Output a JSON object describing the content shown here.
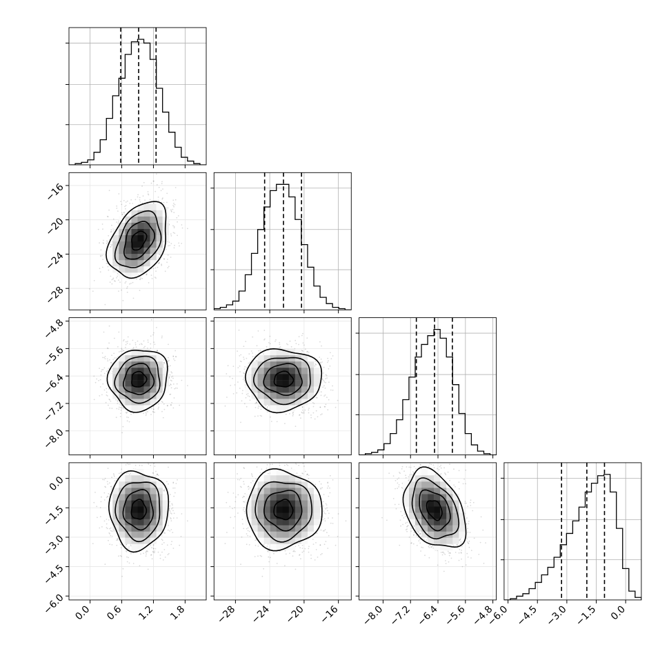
{
  "chart_data": {
    "type": "corner",
    "grid": true,
    "parameters": [
      {
        "range": [
          -0.4,
          2.2
        ],
        "ticks": [
          "0.0",
          "0.6",
          "1.2",
          "1.8"
        ],
        "tick_values": [
          0.0,
          0.6,
          1.2,
          1.8
        ],
        "mean": 0.92,
        "sigma": 0.28,
        "quantiles": [
          0.58,
          0.92,
          1.25
        ]
      },
      {
        "range": [
          -30.5,
          -14.5
        ],
        "ticks": [
          "-28",
          "-24",
          "-20",
          "-16"
        ],
        "tick_values": [
          -28,
          -24,
          -20,
          -16
        ],
        "mean": -22.4,
        "sigma": 2.2,
        "quantiles": [
          -24.6,
          -22.4,
          -20.3
        ]
      },
      {
        "range": [
          -8.7,
          -4.7
        ],
        "ticks": [
          "-8.0",
          "-7.2",
          "-6.4",
          "-5.6",
          "-4.8"
        ],
        "tick_values": [
          -8.0,
          -7.2,
          -6.4,
          -5.6,
          -4.8
        ],
        "mean": -6.5,
        "sigma": 0.45,
        "quantiles": [
          -7.03,
          -6.5,
          -5.98
        ]
      },
      {
        "range": [
          -6.2,
          0.8
        ],
        "ticks": [
          "-6.0",
          "-4.5",
          "-3.0",
          "-1.5",
          "0.0"
        ],
        "tick_values": [
          -6.0,
          -4.5,
          -3.0,
          -1.5,
          0.0
        ],
        "mean": -1.6,
        "sigma": 1.0,
        "quantiles": [
          -3.27,
          -1.98,
          -1.08
        ]
      }
    ],
    "hist_counts": [
      [
        0.0,
        0.01,
        0.02,
        0.04,
        0.1,
        0.2,
        0.37,
        0.55,
        0.69,
        0.88,
        0.98,
        1.0,
        0.97,
        0.84,
        0.61,
        0.42,
        0.26,
        0.14,
        0.06,
        0.03,
        0.01,
        0.0
      ],
      [
        0.01,
        0.02,
        0.04,
        0.07,
        0.15,
        0.28,
        0.45,
        0.64,
        0.82,
        0.95,
        1.0,
        1.0,
        0.9,
        0.72,
        0.52,
        0.34,
        0.19,
        0.1,
        0.05,
        0.02,
        0.01,
        0.0
      ],
      [
        0.0,
        0.01,
        0.02,
        0.04,
        0.09,
        0.17,
        0.28,
        0.44,
        0.62,
        0.78,
        0.88,
        0.95,
        1.0,
        0.93,
        0.78,
        0.56,
        0.33,
        0.17,
        0.08,
        0.03,
        0.01,
        0.0
      ],
      [
        0.0,
        0.01,
        0.03,
        0.05,
        0.09,
        0.14,
        0.2,
        0.26,
        0.34,
        0.44,
        0.53,
        0.63,
        0.74,
        0.86,
        0.93,
        0.99,
        1.0,
        0.86,
        0.57,
        0.25,
        0.07,
        0.02
      ]
    ],
    "correlations": {
      "1,0": 0.35,
      "2,0": 0.05,
      "2,1": 0.0,
      "3,0": 0.0,
      "3,1": 0.0,
      "3,2": -0.35
    }
  }
}
